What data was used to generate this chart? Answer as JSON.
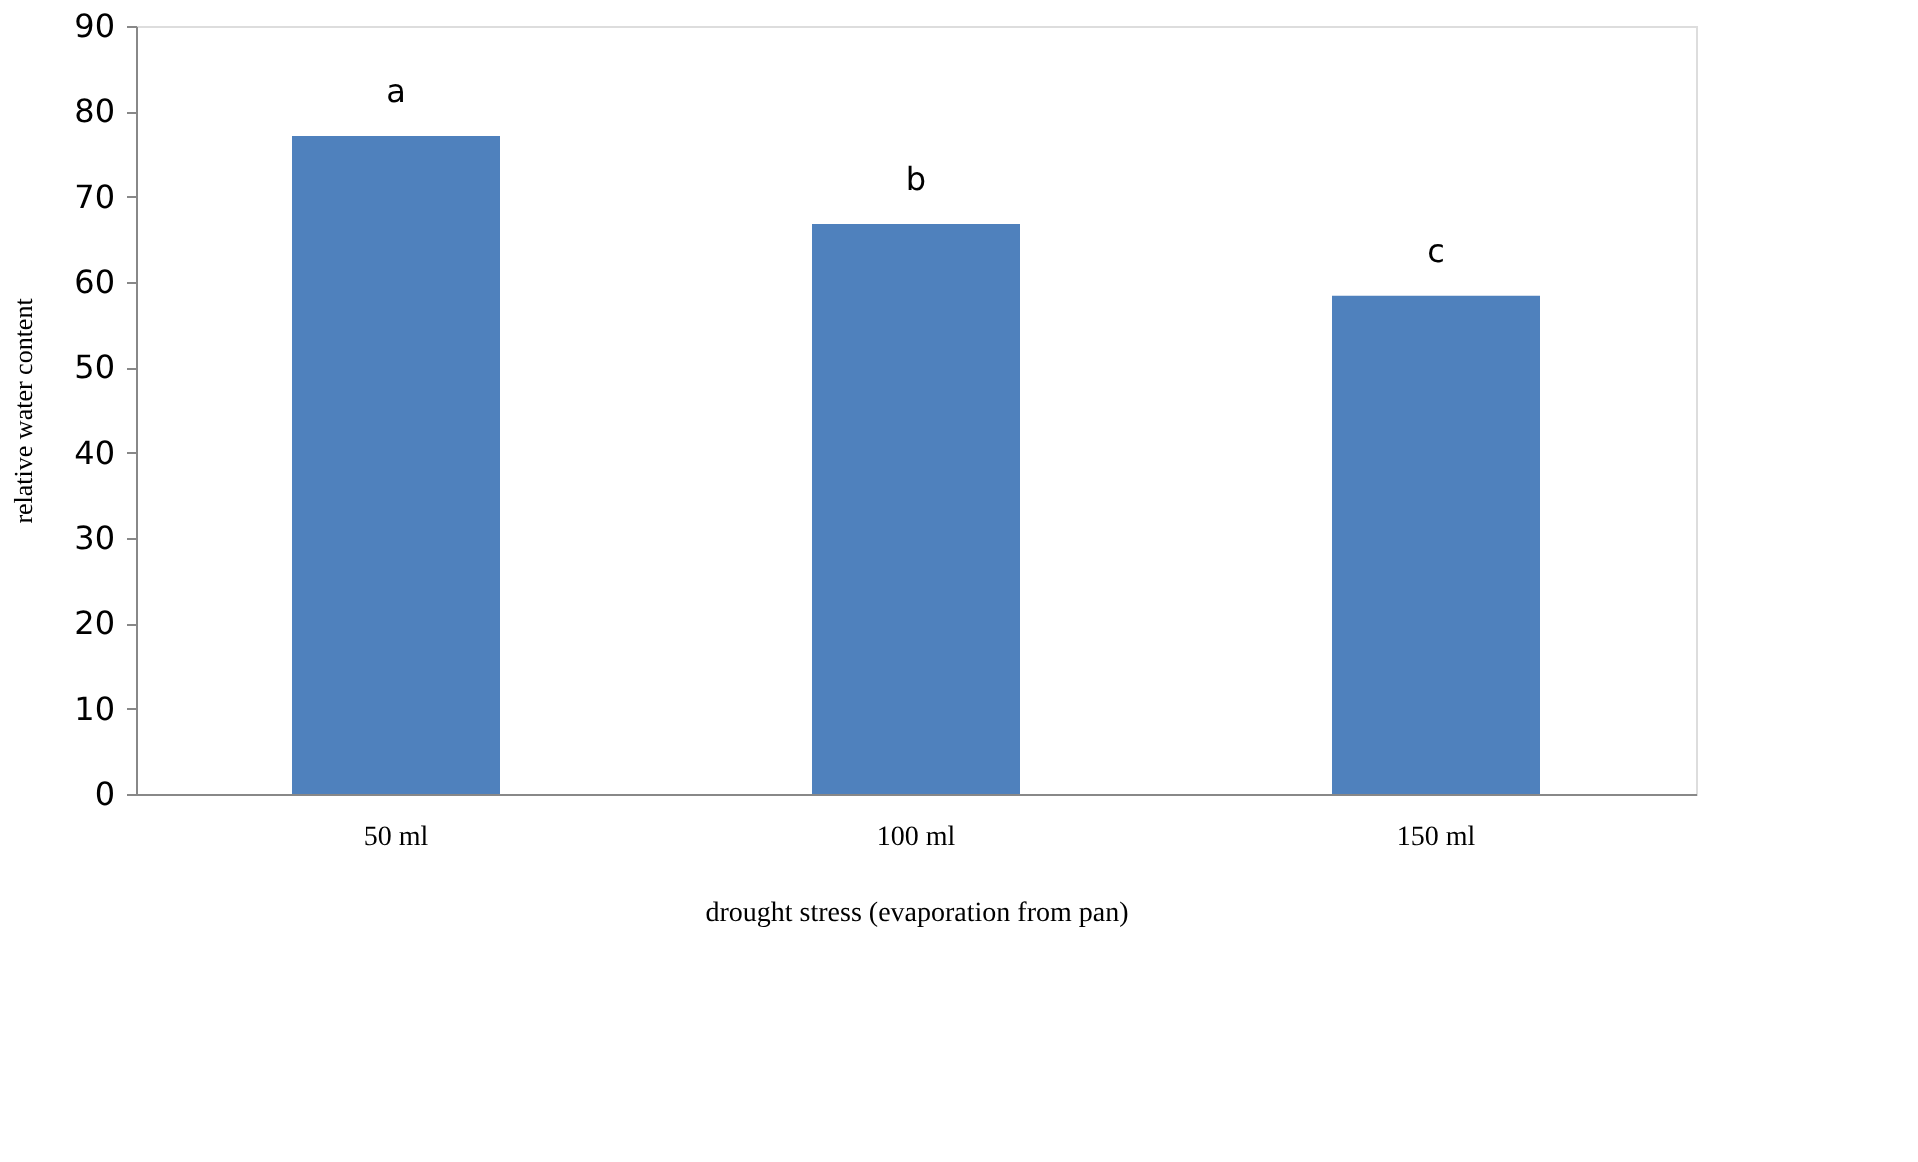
{
  "chart_data": {
    "type": "bar",
    "xlabel": "drought stress (evaporation from pan)",
    "ylabel": "relative water content",
    "categories": [
      "50 ml",
      "100 ml",
      "150 ml"
    ],
    "values": [
      77.1,
      66.8,
      58.4
    ],
    "color": "#4f81bd",
    "ylim": [
      0,
      90
    ],
    "yticks": [
      0,
      10,
      20,
      30,
      40,
      50,
      60,
      70,
      80,
      90
    ],
    "grid": false,
    "annotations": [
      {
        "text": "a",
        "x": "50 ml",
        "y": 77.1
      },
      {
        "text": "b",
        "x": "100 ml",
        "y": 66.8
      },
      {
        "text": "c",
        "x": "150 ml",
        "y": 58.4
      }
    ]
  }
}
